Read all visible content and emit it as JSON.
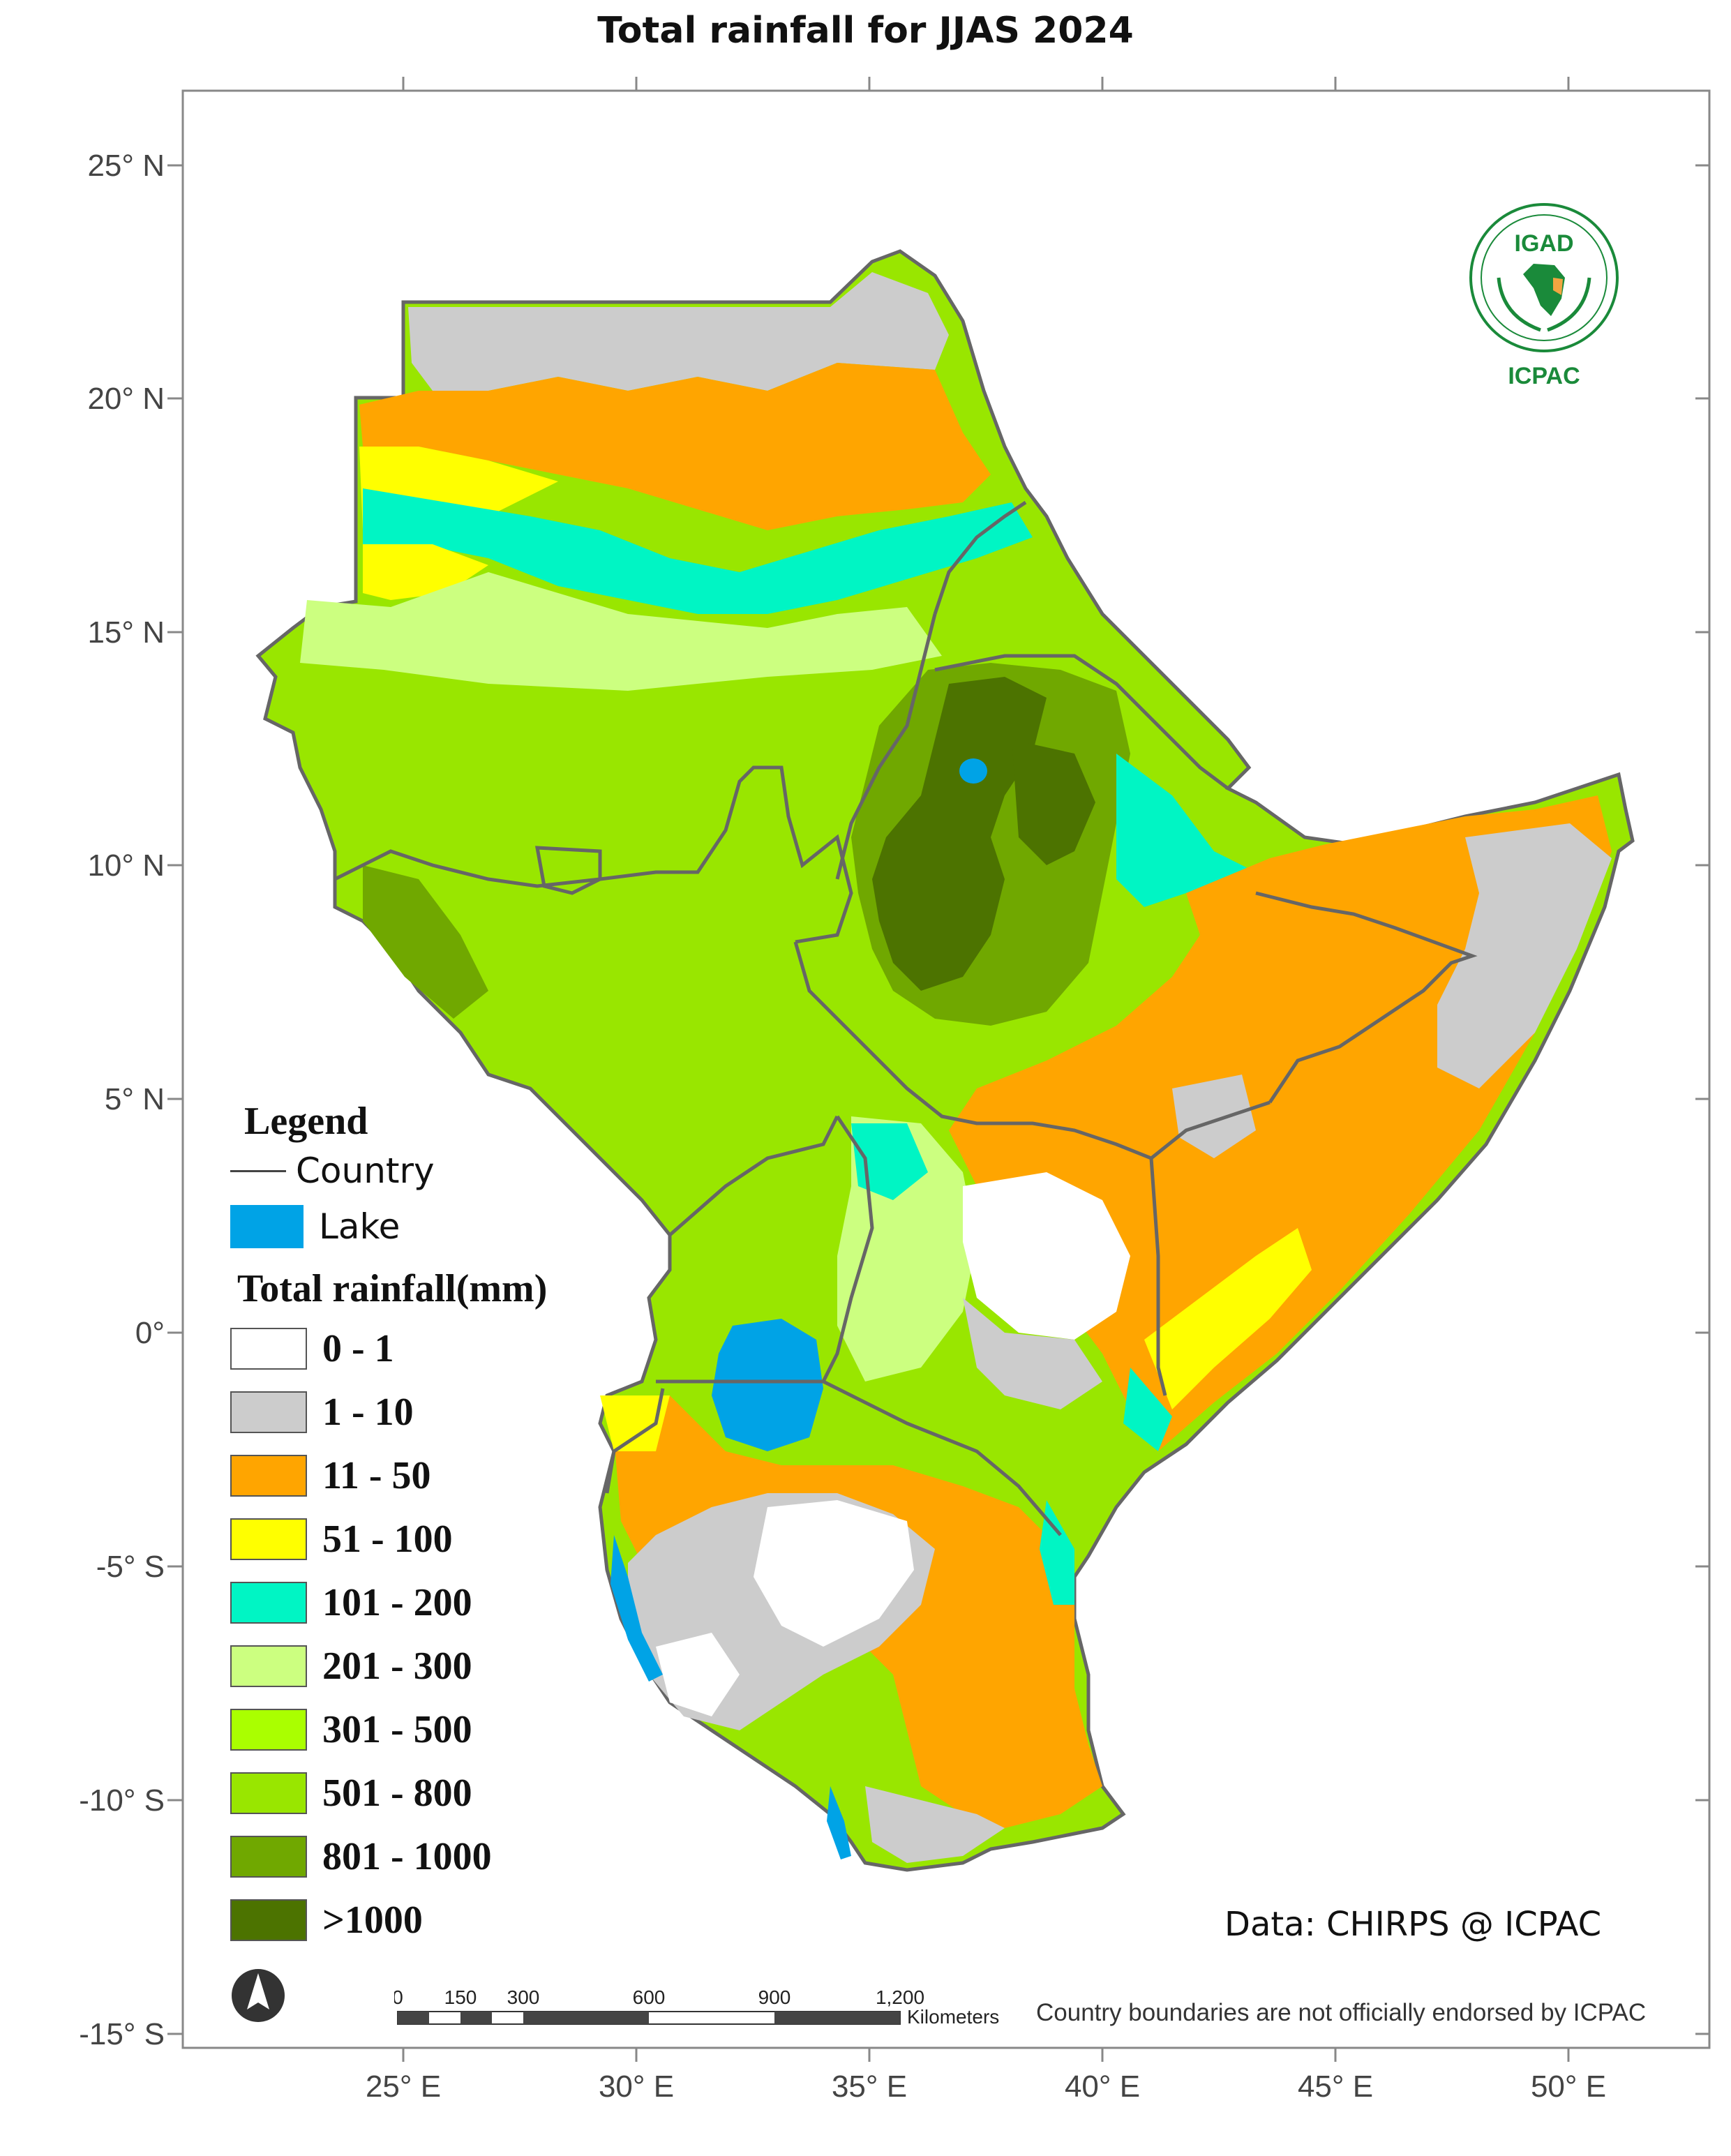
{
  "title": "Total rainfall  for JJAS 2024",
  "lat_ticks": [
    "25° N",
    "20° N",
    "15° N",
    "10° N",
    "5° N",
    "0°",
    "-5° S",
    "-10° S",
    "-15° S"
  ],
  "lon_ticks": [
    "25° E",
    "30° E",
    "35° E",
    "40° E",
    "45° E",
    "50° E"
  ],
  "legend": {
    "title": "Legend",
    "country_label": "Country",
    "lake_label": "Lake",
    "lake_color": "#00a3e6",
    "rainfall_title": "Total rainfall(mm)",
    "classes": [
      {
        "label": "0 - 1",
        "color": "#ffffff"
      },
      {
        "label": "1 - 10",
        "color": "#cccccc"
      },
      {
        "label": "11 - 50",
        "color": "#ffa500"
      },
      {
        "label": "51 - 100",
        "color": "#ffff00"
      },
      {
        "label": "101 - 200",
        "color": "#00f5c4"
      },
      {
        "label": "201 - 300",
        "color": "#ccff80"
      },
      {
        "label": "301 - 500",
        "color": "#aaff00"
      },
      {
        "label": "501 - 800",
        "color": "#99e600"
      },
      {
        "label": "801 - 1000",
        "color": "#70a800"
      },
      {
        "label": ">1000",
        "color": "#4c7300"
      }
    ]
  },
  "credit": "Data: CHIRPS @ ICPAC",
  "disclaimer": "Country boundaries are not officially endorsed by ICPAC",
  "scale_bar": {
    "labels": [
      "0",
      "150",
      "300",
      "600",
      "900",
      "1,200"
    ],
    "units": "Kilometers"
  },
  "logo": {
    "top_text": "IGAD",
    "bottom_text": "ICPAC",
    "color": "#1a8a3a"
  }
}
